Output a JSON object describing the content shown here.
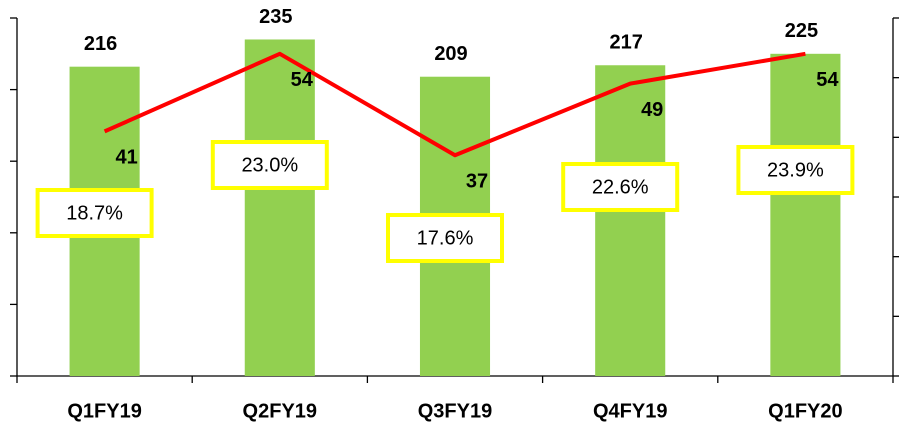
{
  "chart_data": {
    "type": "bar",
    "categories": [
      "Q1FY19",
      "Q2FY19",
      "Q3FY19",
      "Q4FY19",
      "Q1FY20"
    ],
    "series": [
      {
        "type": "bar",
        "color": "#92d050",
        "values": [
          216,
          235,
          209,
          217,
          225
        ]
      },
      {
        "type": "line",
        "color": "#ff0000",
        "axis": "y2",
        "values": [
          41,
          54,
          37,
          49,
          54
        ]
      }
    ],
    "annotations": [
      "18.7%",
      "23.0%",
      "17.6%",
      "22.6%",
      "23.9%"
    ],
    "annotation_color": "#ffff00",
    "ylim": [
      0,
      250
    ],
    "yticks": [
      0,
      50,
      100,
      150,
      200,
      250
    ],
    "y2lim": [
      0,
      60
    ],
    "y2ticks": [
      0,
      10,
      20,
      30,
      40,
      50,
      60
    ],
    "grid": false
  }
}
